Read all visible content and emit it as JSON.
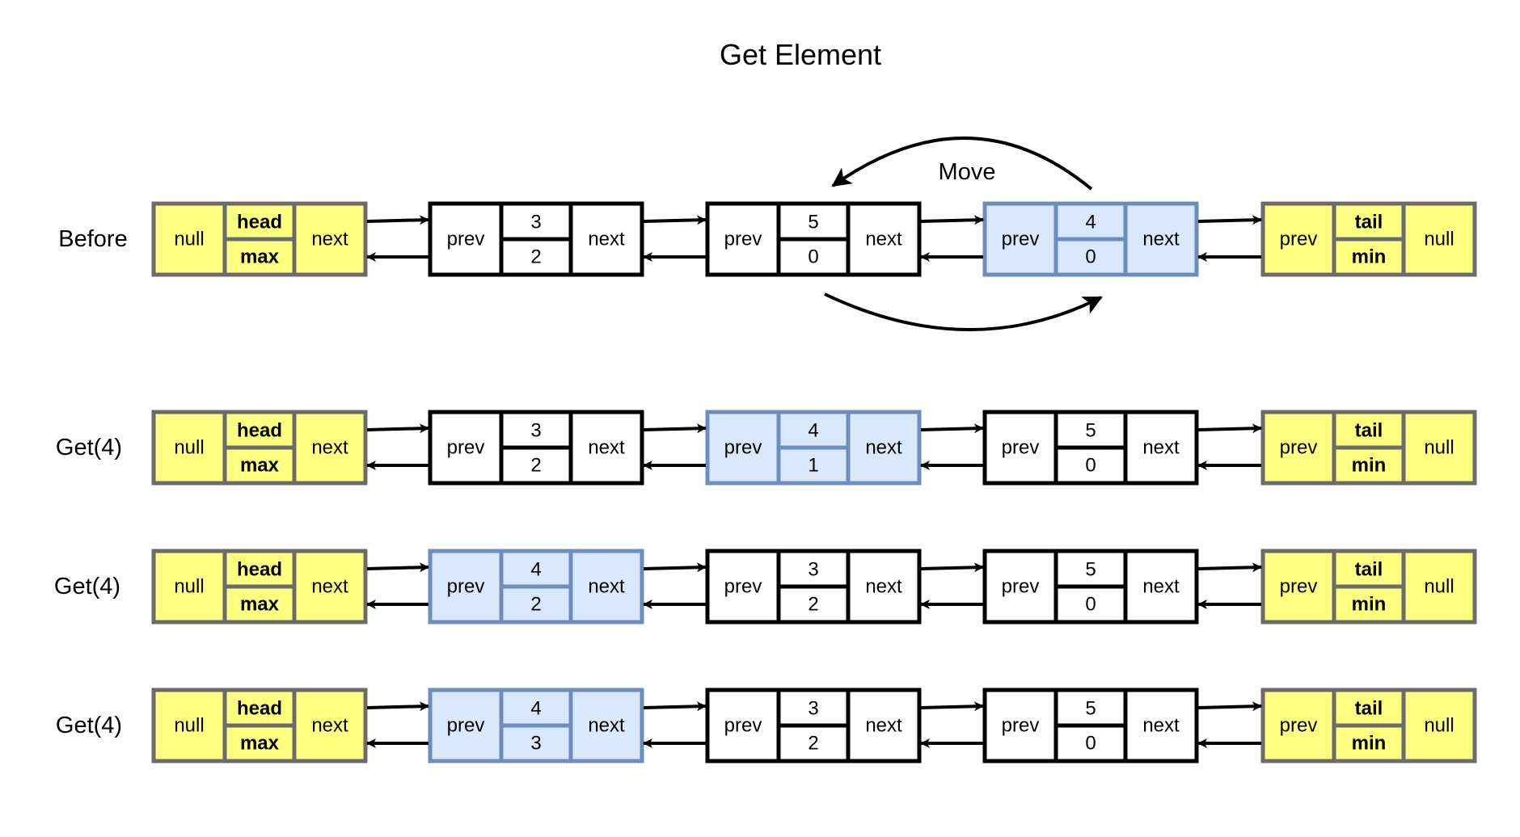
{
  "title": "Get Element",
  "colors": {
    "sentinel_fill": "#ffff80",
    "sentinel_stroke": "#6b6b6b",
    "node_fill": "#ffffff",
    "node_stroke": "#000000",
    "highlight_fill": "#dae8fc",
    "highlight_stroke": "#6c8ebf",
    "arrow": "#000000"
  },
  "icons": {
    "arrowhead": "filled-triangle-arrowhead"
  },
  "annotation": {
    "label": "Move"
  },
  "rows": [
    {
      "label": "Before",
      "head": {
        "left": "null",
        "top": "head",
        "bottom": "max",
        "right": "next"
      },
      "nodes": [
        {
          "prev": "prev",
          "key": "3",
          "count": "2",
          "next": "next",
          "highlight": false
        },
        {
          "prev": "prev",
          "key": "5",
          "count": "0",
          "next": "next",
          "highlight": false
        },
        {
          "prev": "prev",
          "key": "4",
          "count": "0",
          "next": "next",
          "highlight": true
        }
      ],
      "tail": {
        "left": "prev",
        "top": "tail",
        "bottom": "min",
        "right": "null"
      }
    },
    {
      "label": "Get(4)",
      "head": {
        "left": "null",
        "top": "head",
        "bottom": "max",
        "right": "next"
      },
      "nodes": [
        {
          "prev": "prev",
          "key": "3",
          "count": "2",
          "next": "next",
          "highlight": false
        },
        {
          "prev": "prev",
          "key": "4",
          "count": "1",
          "next": "next",
          "highlight": true
        },
        {
          "prev": "prev",
          "key": "5",
          "count": "0",
          "next": "next",
          "highlight": false
        }
      ],
      "tail": {
        "left": "prev",
        "top": "tail",
        "bottom": "min",
        "right": "null"
      }
    },
    {
      "label": "Get(4)",
      "head": {
        "left": "null",
        "top": "head",
        "bottom": "max",
        "right": "next"
      },
      "nodes": [
        {
          "prev": "prev",
          "key": "4",
          "count": "2",
          "next": "next",
          "highlight": true
        },
        {
          "prev": "prev",
          "key": "3",
          "count": "2",
          "next": "next",
          "highlight": false
        },
        {
          "prev": "prev",
          "key": "5",
          "count": "0",
          "next": "next",
          "highlight": false
        }
      ],
      "tail": {
        "left": "prev",
        "top": "tail",
        "bottom": "min",
        "right": "null"
      }
    },
    {
      "label": "Get(4)",
      "head": {
        "left": "null",
        "top": "head",
        "bottom": "max",
        "right": "next"
      },
      "nodes": [
        {
          "prev": "prev",
          "key": "4",
          "count": "3",
          "next": "next",
          "highlight": true
        },
        {
          "prev": "prev",
          "key": "3",
          "count": "2",
          "next": "next",
          "highlight": false
        },
        {
          "prev": "prev",
          "key": "5",
          "count": "0",
          "next": "next",
          "highlight": false
        }
      ],
      "tail": {
        "left": "prev",
        "top": "tail",
        "bottom": "min",
        "right": "null"
      }
    }
  ]
}
